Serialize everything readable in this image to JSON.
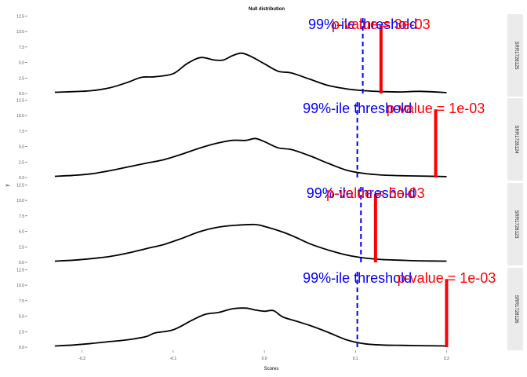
{
  "chart_data": {
    "type": "line",
    "title": "Null distribution",
    "xlabel": "Scores",
    "ylabel": "y",
    "xlim": [
      -0.26,
      0.265
    ],
    "ylim": [
      -0.5,
      12.8
    ],
    "x_ticks": [
      -0.2,
      -0.1,
      0.0,
      0.1,
      0.2
    ],
    "x_tick_labels": [
      "-0.2",
      "-0.1",
      "0.0",
      "0.1",
      "0.2"
    ],
    "y_ticks": [
      0,
      2.5,
      5,
      7.5,
      10,
      12.5
    ],
    "y_tick_labels": [
      "0.0",
      "2.5",
      "5.0",
      "7.5",
      "10.0",
      "12.5"
    ],
    "grid": false,
    "threshold_label": "99%-ile threshold",
    "colors": {
      "density": "#000000",
      "threshold": "#0000ff",
      "observed": "#ff0000",
      "strip": "#ebebeb"
    },
    "panels": [
      {
        "strip": "SRR1728125",
        "threshold_x": 0.108,
        "observed_x": 0.128,
        "observed_height": 11.0,
        "pvalue_label": "p-value = 3e-03",
        "density": [
          [
            -0.23,
            0.2
          ],
          [
            -0.21,
            0.3
          ],
          [
            -0.19,
            0.45
          ],
          [
            -0.17,
            0.9
          ],
          [
            -0.15,
            1.8
          ],
          [
            -0.135,
            2.6
          ],
          [
            -0.12,
            2.7
          ],
          [
            -0.1,
            3.2
          ],
          [
            -0.085,
            4.8
          ],
          [
            -0.07,
            5.8
          ],
          [
            -0.055,
            5.4
          ],
          [
            -0.045,
            5.4
          ],
          [
            -0.035,
            6.1
          ],
          [
            -0.025,
            6.5
          ],
          [
            -0.015,
            6.0
          ],
          [
            0.0,
            4.8
          ],
          [
            0.015,
            3.6
          ],
          [
            0.03,
            3.3
          ],
          [
            0.05,
            2.3
          ],
          [
            0.07,
            1.3
          ],
          [
            0.09,
            0.75
          ],
          [
            0.11,
            0.45
          ],
          [
            0.13,
            0.3
          ],
          [
            0.15,
            0.25
          ],
          [
            0.17,
            0.35
          ],
          [
            0.2,
            0.15
          ]
        ]
      },
      {
        "strip": "SRR1728124",
        "threshold_x": 0.102,
        "observed_x": 0.188,
        "observed_height": 11.0,
        "pvalue_label": "p-value = 1e-03",
        "density": [
          [
            -0.23,
            0.2
          ],
          [
            -0.21,
            0.35
          ],
          [
            -0.19,
            0.6
          ],
          [
            -0.17,
            1.1
          ],
          [
            -0.15,
            1.7
          ],
          [
            -0.13,
            2.3
          ],
          [
            -0.11,
            2.9
          ],
          [
            -0.09,
            3.8
          ],
          [
            -0.07,
            4.8
          ],
          [
            -0.05,
            5.6
          ],
          [
            -0.035,
            6.0
          ],
          [
            -0.02,
            6.0
          ],
          [
            -0.01,
            6.3
          ],
          [
            0.0,
            5.8
          ],
          [
            0.015,
            4.8
          ],
          [
            0.03,
            4.5
          ],
          [
            0.05,
            3.5
          ],
          [
            0.07,
            2.3
          ],
          [
            0.09,
            1.2
          ],
          [
            0.11,
            0.65
          ],
          [
            0.13,
            0.4
          ],
          [
            0.15,
            0.3
          ],
          [
            0.17,
            0.25
          ],
          [
            0.2,
            0.15
          ]
        ]
      },
      {
        "strip": "SRR1728123",
        "threshold_x": 0.106,
        "observed_x": 0.122,
        "observed_height": 11.0,
        "pvalue_label": "p-value = 5e-03",
        "density": [
          [
            -0.23,
            0.2
          ],
          [
            -0.21,
            0.35
          ],
          [
            -0.19,
            0.6
          ],
          [
            -0.17,
            0.95
          ],
          [
            -0.15,
            1.5
          ],
          [
            -0.13,
            2.2
          ],
          [
            -0.11,
            2.9
          ],
          [
            -0.09,
            3.9
          ],
          [
            -0.07,
            5.0
          ],
          [
            -0.05,
            5.7
          ],
          [
            -0.03,
            6.0
          ],
          [
            -0.01,
            6.1
          ],
          [
            0.0,
            5.8
          ],
          [
            0.02,
            4.9
          ],
          [
            0.035,
            4.0
          ],
          [
            0.05,
            3.0
          ],
          [
            0.07,
            2.0
          ],
          [
            0.09,
            1.2
          ],
          [
            0.11,
            0.7
          ],
          [
            0.13,
            0.45
          ],
          [
            0.15,
            0.35
          ],
          [
            0.17,
            0.25
          ],
          [
            0.2,
            0.2
          ]
        ]
      },
      {
        "strip": "SRR1728126",
        "threshold_x": 0.102,
        "observed_x": 0.2,
        "observed_height": 11.0,
        "pvalue_label": "p-value = 1e-03",
        "density": [
          [
            -0.23,
            0.2
          ],
          [
            -0.21,
            0.35
          ],
          [
            -0.19,
            0.6
          ],
          [
            -0.17,
            0.9
          ],
          [
            -0.15,
            1.2
          ],
          [
            -0.13,
            1.7
          ],
          [
            -0.12,
            2.3
          ],
          [
            -0.1,
            2.8
          ],
          [
            -0.08,
            4.3
          ],
          [
            -0.065,
            5.3
          ],
          [
            -0.05,
            5.6
          ],
          [
            -0.035,
            6.2
          ],
          [
            -0.02,
            6.3
          ],
          [
            -0.01,
            6.0
          ],
          [
            0.0,
            5.8
          ],
          [
            0.01,
            5.9
          ],
          [
            0.02,
            4.9
          ],
          [
            0.035,
            4.2
          ],
          [
            0.05,
            3.5
          ],
          [
            0.07,
            2.4
          ],
          [
            0.09,
            1.2
          ],
          [
            0.11,
            0.55
          ],
          [
            0.13,
            0.35
          ],
          [
            0.15,
            0.3
          ],
          [
            0.17,
            0.25
          ],
          [
            0.2,
            0.2
          ]
        ]
      }
    ]
  }
}
